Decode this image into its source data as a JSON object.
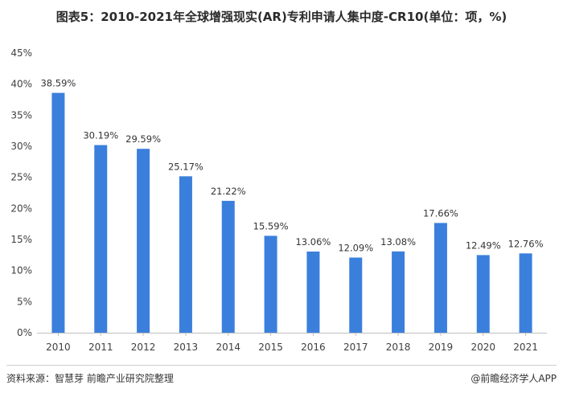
{
  "title": "图表5：2010-2021年全球增强现实(AR)专利申请人集中度-CR10(单位：项，%)",
  "source": "资料来源：智慧芽 前瞻产业研究院整理",
  "brand": "@前瞻经济学人APP",
  "colors": {
    "bar": "#3b7fdd",
    "axis": "#bfbfbf",
    "text": "#404040"
  },
  "chart_data": {
    "type": "bar",
    "categories": [
      "2010",
      "2011",
      "2012",
      "2013",
      "2014",
      "2015",
      "2016",
      "2017",
      "2018",
      "2019",
      "2020",
      "2021"
    ],
    "values": [
      38.59,
      30.19,
      29.59,
      25.17,
      21.22,
      15.59,
      13.06,
      12.09,
      13.08,
      17.66,
      12.49,
      12.76
    ],
    "value_labels": [
      "38.59%",
      "30.19%",
      "29.59%",
      "25.17%",
      "21.22%",
      "15.59%",
      "13.06%",
      "12.09%",
      "13.08%",
      "17.66%",
      "12.49%",
      "12.76%"
    ],
    "ylim": [
      0,
      45
    ],
    "yticks": [
      0,
      5,
      10,
      15,
      20,
      25,
      30,
      35,
      40,
      45
    ],
    "ytick_labels": [
      "0%",
      "5%",
      "10%",
      "15%",
      "20%",
      "25%",
      "30%",
      "35%",
      "40%",
      "45%"
    ],
    "grid": false,
    "legend": false
  }
}
